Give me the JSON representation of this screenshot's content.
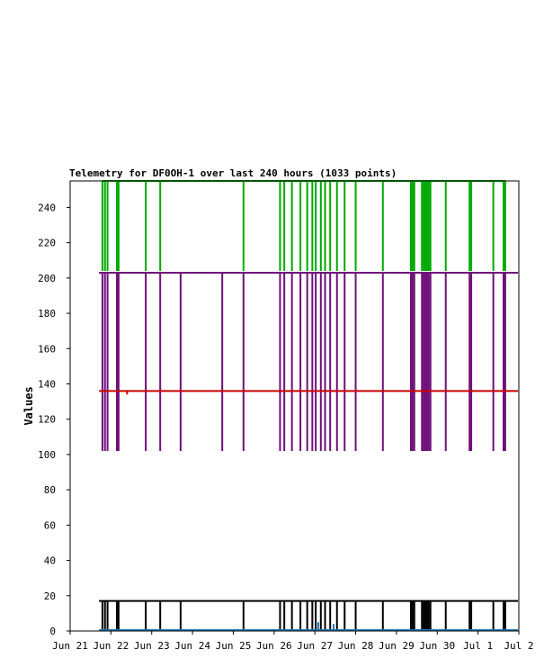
{
  "chart_data": {
    "type": "line",
    "title": "Telemetry for DF0OH-1 over last 240 hours (1033 points)",
    "xlabel": "",
    "ylabel": "Values",
    "ylim": [
      0,
      255
    ],
    "y_ticks": [
      0,
      20,
      40,
      60,
      80,
      100,
      120,
      140,
      160,
      180,
      200,
      220,
      240
    ],
    "xlim": [
      "2026-06-21T00:00",
      "2026-07-02T00:00"
    ],
    "x_ticks": [
      {
        "date": "2026-06-21",
        "label": "Jun 21"
      },
      {
        "date": "2026-06-22",
        "label": "Jun 22"
      },
      {
        "date": "2026-06-23",
        "label": "Jun 23"
      },
      {
        "date": "2026-06-24",
        "label": "Jun 24"
      },
      {
        "date": "2026-06-25",
        "label": "Jun 25"
      },
      {
        "date": "2026-06-26",
        "label": "Jun 26"
      },
      {
        "date": "2026-06-27",
        "label": "Jun 27"
      },
      {
        "date": "2026-06-28",
        "label": "Jun 28"
      },
      {
        "date": "2026-06-29",
        "label": "Jun 29"
      },
      {
        "date": "2026-06-30",
        "label": "Jun 30"
      },
      {
        "date": "2026-07-01",
        "label": "Jul 1"
      },
      {
        "date": "2026-07-02",
        "label": "Jul 2"
      }
    ],
    "grid": false,
    "series": [
      {
        "color": "#00aa00",
        "baseline_value": 255,
        "range": [
          "2026-06-21T19:00",
          "2026-07-01T16:00"
        ],
        "spikes": [
          {
            "t": "2026-06-21T19:00",
            "min": 204
          },
          {
            "t": "2026-06-21T20:30",
            "min": 204
          },
          {
            "t": "2026-06-21T22:00",
            "min": 204
          },
          {
            "t": "2026-06-22T03:30",
            "min": 204
          },
          {
            "t": "2026-06-22T04:30",
            "min": 204
          },
          {
            "t": "2026-06-22T20:30",
            "min": 204
          },
          {
            "t": "2026-06-23T05:00",
            "min": 204
          },
          {
            "t": "2026-06-25T06:00",
            "min": 204
          },
          {
            "t": "2026-06-26T03:30",
            "min": 204
          },
          {
            "t": "2026-06-26T06:00",
            "min": 204
          },
          {
            "t": "2026-06-26T10:30",
            "min": 204
          },
          {
            "t": "2026-06-26T15:30",
            "min": 204
          },
          {
            "t": "2026-06-26T19:30",
            "min": 204
          },
          {
            "t": "2026-06-26T22:30",
            "min": 204
          },
          {
            "t": "2026-06-27T00:30",
            "min": 204
          },
          {
            "t": "2026-06-27T03:30",
            "min": 204
          },
          {
            "t": "2026-06-27T06:00",
            "min": 204
          },
          {
            "t": "2026-06-27T09:00",
            "min": 204
          },
          {
            "t": "2026-06-27T13:00",
            "min": 204
          },
          {
            "t": "2026-06-27T17:30",
            "min": 204
          },
          {
            "t": "2026-06-28T00:00",
            "min": 204
          },
          {
            "t": "2026-06-28T16:00",
            "min": 204
          },
          {
            "t": "2026-06-29T08:30",
            "min": 204
          },
          {
            "t": "2026-06-29T09:30",
            "min": 204
          },
          {
            "t": "2026-06-29T10:30",
            "min": 204
          },
          {
            "t": "2026-06-29T15:00",
            "min": 204
          },
          {
            "t": "2026-06-29T16:00",
            "min": 204
          },
          {
            "t": "2026-06-29T17:00",
            "min": 204
          },
          {
            "t": "2026-06-29T18:00",
            "min": 204
          },
          {
            "t": "2026-06-29T19:00",
            "min": 204
          },
          {
            "t": "2026-06-29T20:00",
            "min": 204
          },
          {
            "t": "2026-06-30T05:00",
            "min": 204
          },
          {
            "t": "2026-06-30T19:00",
            "min": 204
          },
          {
            "t": "2026-06-30T20:00",
            "min": 204
          },
          {
            "t": "2026-07-01T09:00",
            "min": 204
          },
          {
            "t": "2026-07-01T15:00",
            "min": 204
          },
          {
            "t": "2026-07-01T16:00",
            "min": 204
          }
        ]
      },
      {
        "color": "#6e0f7a",
        "baseline_value": 203,
        "range": [
          "2026-06-21T17:00",
          "2026-07-01T23:30"
        ],
        "spikes": [
          {
            "t": "2026-06-21T19:00",
            "min": 102
          },
          {
            "t": "2026-06-21T20:30",
            "min": 102
          },
          {
            "t": "2026-06-21T22:00",
            "min": 102
          },
          {
            "t": "2026-06-22T03:30",
            "min": 102
          },
          {
            "t": "2026-06-22T04:30",
            "min": 102
          },
          {
            "t": "2026-06-22T20:30",
            "min": 102
          },
          {
            "t": "2026-06-23T05:00",
            "min": 102
          },
          {
            "t": "2026-06-23T17:00",
            "min": 102
          },
          {
            "t": "2026-06-24T17:30",
            "min": 102
          },
          {
            "t": "2026-06-25T06:00",
            "min": 102
          },
          {
            "t": "2026-06-26T03:30",
            "min": 102
          },
          {
            "t": "2026-06-26T06:00",
            "min": 102
          },
          {
            "t": "2026-06-26T10:30",
            "min": 102
          },
          {
            "t": "2026-06-26T15:30",
            "min": 102
          },
          {
            "t": "2026-06-26T19:30",
            "min": 102
          },
          {
            "t": "2026-06-26T22:30",
            "min": 102
          },
          {
            "t": "2026-06-27T00:30",
            "min": 102
          },
          {
            "t": "2026-06-27T03:30",
            "min": 102
          },
          {
            "t": "2026-06-27T06:00",
            "min": 102
          },
          {
            "t": "2026-06-27T09:00",
            "min": 102
          },
          {
            "t": "2026-06-27T13:00",
            "min": 102
          },
          {
            "t": "2026-06-27T17:30",
            "min": 102
          },
          {
            "t": "2026-06-28T00:00",
            "min": 102
          },
          {
            "t": "2026-06-28T16:00",
            "min": 102
          },
          {
            "t": "2026-06-29T08:30",
            "min": 102
          },
          {
            "t": "2026-06-29T09:30",
            "min": 102
          },
          {
            "t": "2026-06-29T10:30",
            "min": 102
          },
          {
            "t": "2026-06-29T15:00",
            "min": 102
          },
          {
            "t": "2026-06-29T16:00",
            "min": 102
          },
          {
            "t": "2026-06-29T17:00",
            "min": 102
          },
          {
            "t": "2026-06-29T18:00",
            "min": 102
          },
          {
            "t": "2026-06-29T19:00",
            "min": 102
          },
          {
            "t": "2026-06-29T20:00",
            "min": 102
          },
          {
            "t": "2026-06-30T05:00",
            "min": 102
          },
          {
            "t": "2026-06-30T19:00",
            "min": 102
          },
          {
            "t": "2026-06-30T20:00",
            "min": 102
          },
          {
            "t": "2026-07-01T09:00",
            "min": 102
          },
          {
            "t": "2026-07-01T15:00",
            "min": 102
          },
          {
            "t": "2026-07-01T16:00",
            "min": 102
          }
        ]
      },
      {
        "color": "#cc0000",
        "baseline_value": 136,
        "range": [
          "2026-06-21T17:00",
          "2026-07-01T23:30"
        ],
        "spikes": [
          {
            "t": "2026-06-22T09:30",
            "min": 134
          }
        ]
      },
      {
        "color": "#000000",
        "baseline_value": 17,
        "range": [
          "2026-06-21T17:00",
          "2026-07-01T23:30"
        ],
        "spikes": [
          {
            "t": "2026-06-21T19:00",
            "min": 0
          },
          {
            "t": "2026-06-21T20:30",
            "min": 0
          },
          {
            "t": "2026-06-21T22:00",
            "min": 0
          },
          {
            "t": "2026-06-22T03:30",
            "min": 0
          },
          {
            "t": "2026-06-22T04:30",
            "min": 0
          },
          {
            "t": "2026-06-22T20:30",
            "min": 0
          },
          {
            "t": "2026-06-23T05:00",
            "min": 0
          },
          {
            "t": "2026-06-23T17:00",
            "min": 0
          },
          {
            "t": "2026-06-25T06:00",
            "min": 0
          },
          {
            "t": "2026-06-26T03:30",
            "min": 0
          },
          {
            "t": "2026-06-26T06:00",
            "min": 0
          },
          {
            "t": "2026-06-26T10:30",
            "min": 0
          },
          {
            "t": "2026-06-26T15:30",
            "min": 0
          },
          {
            "t": "2026-06-26T19:30",
            "min": 0
          },
          {
            "t": "2026-06-26T22:30",
            "min": 0
          },
          {
            "t": "2026-06-27T00:30",
            "min": 0
          },
          {
            "t": "2026-06-27T03:30",
            "min": 0
          },
          {
            "t": "2026-06-27T06:00",
            "min": 0
          },
          {
            "t": "2026-06-27T09:00",
            "min": 0
          },
          {
            "t": "2026-06-27T13:00",
            "min": 0
          },
          {
            "t": "2026-06-27T17:30",
            "min": 0
          },
          {
            "t": "2026-06-28T00:00",
            "min": 0
          },
          {
            "t": "2026-06-28T16:00",
            "min": 0
          },
          {
            "t": "2026-06-29T08:30",
            "min": 0
          },
          {
            "t": "2026-06-29T09:30",
            "min": 0
          },
          {
            "t": "2026-06-29T10:30",
            "min": 0
          },
          {
            "t": "2026-06-29T15:00",
            "min": 0
          },
          {
            "t": "2026-06-29T16:00",
            "min": 0
          },
          {
            "t": "2026-06-29T17:00",
            "min": 0
          },
          {
            "t": "2026-06-29T18:00",
            "min": 0
          },
          {
            "t": "2026-06-29T19:00",
            "min": 0
          },
          {
            "t": "2026-06-29T20:00",
            "min": 0
          },
          {
            "t": "2026-06-30T05:00",
            "min": 0
          },
          {
            "t": "2026-06-30T19:00",
            "min": 0
          },
          {
            "t": "2026-06-30T20:00",
            "min": 0
          },
          {
            "t": "2026-07-01T09:00",
            "min": 0
          },
          {
            "t": "2026-07-01T15:00",
            "min": 0
          },
          {
            "t": "2026-07-01T16:00",
            "min": 0
          }
        ]
      },
      {
        "color": "#1f77b4",
        "baseline_value": 0.5,
        "range": [
          "2026-06-21T17:00",
          "2026-07-01T23:30"
        ],
        "spikes": [
          {
            "t": "2026-06-27T02:00",
            "min": 0,
            "max": 5
          },
          {
            "t": "2026-06-27T11:00",
            "min": 0,
            "max": 4
          }
        ]
      }
    ]
  }
}
